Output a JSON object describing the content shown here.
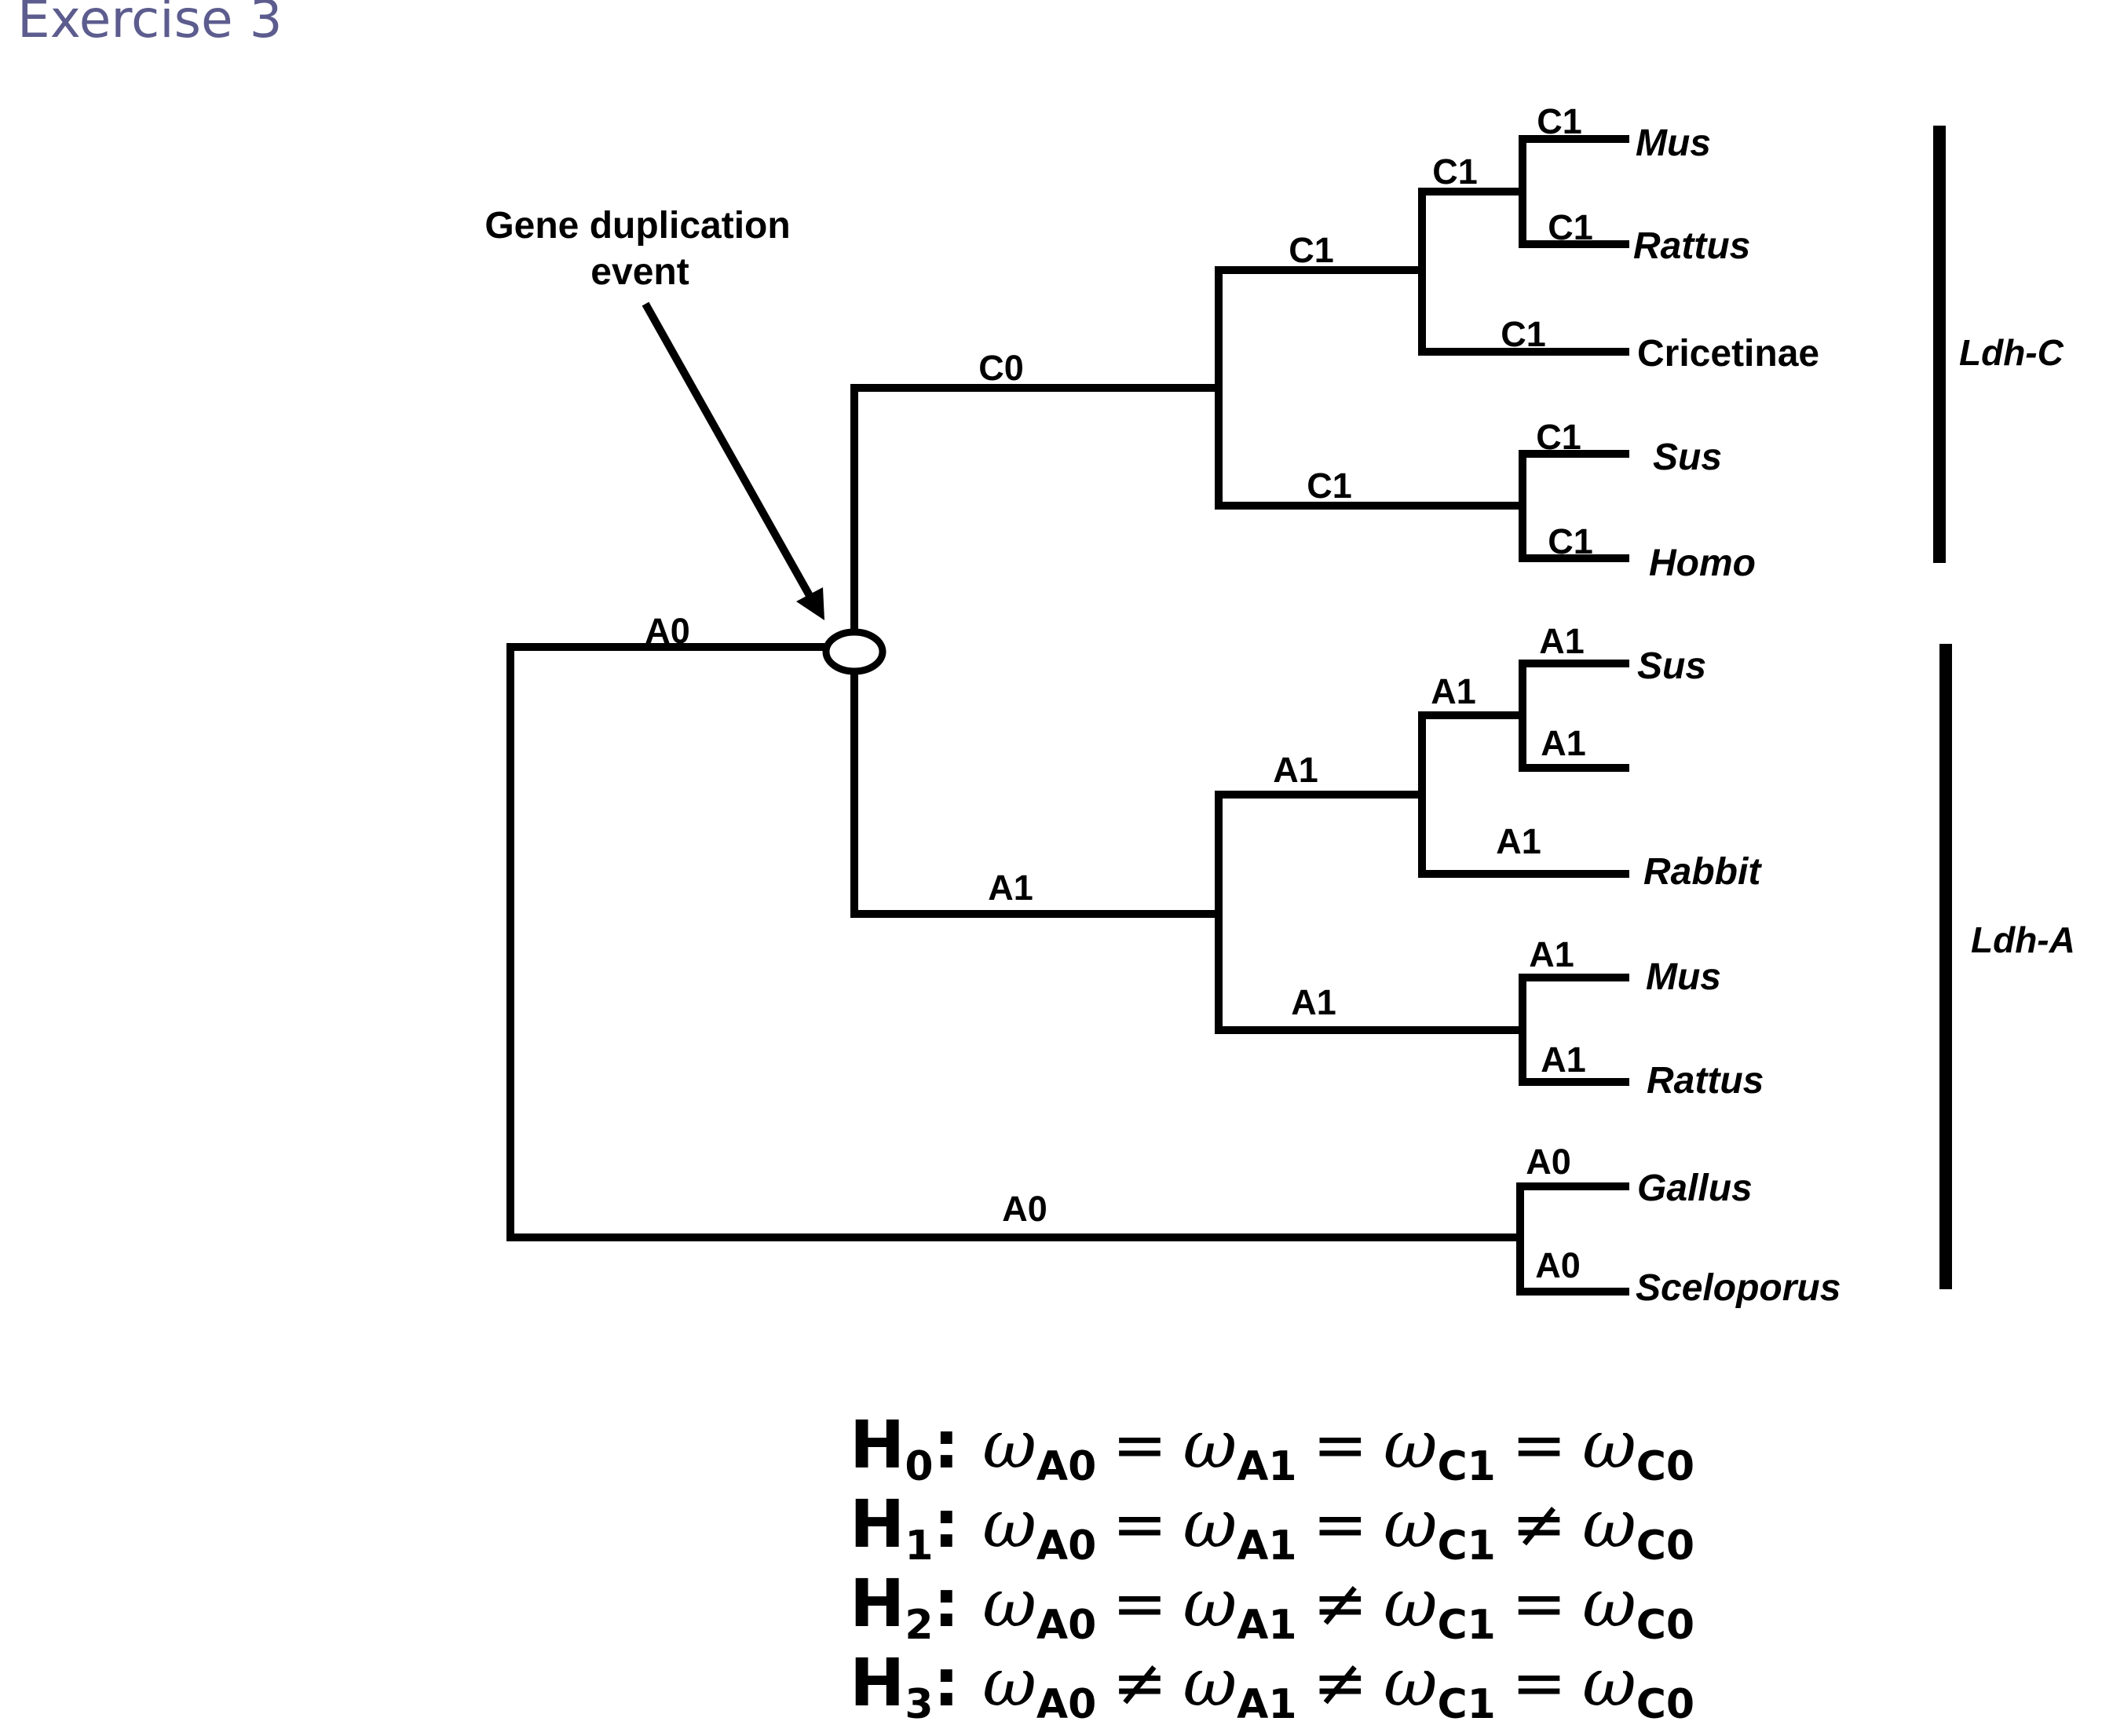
{
  "title": "Exercise 3",
  "annotation": {
    "line1": "Gene duplication",
    "line2": "event"
  },
  "groups": {
    "ldh_c": "Ldh-C",
    "ldh_a": "Ldh-A"
  },
  "taxa": {
    "c_mus": "Mus",
    "c_rattus": "Rattus",
    "c_cricetinae": "Cricetinae",
    "c_sus": "Sus",
    "c_homo": "Homo",
    "a_sus": "Sus",
    "a_rabbit": "Rabbit",
    "a_mus": "Mus",
    "a_rattus": "Rattus",
    "a_gallus": "Gallus",
    "a_sceloporus": "Sceloporus"
  },
  "branch_labels": {
    "root_upper": "A0",
    "root_lower": "A0",
    "c0": "C0",
    "c_clade": "C1",
    "c_murid": "C1",
    "c_mus": "C1",
    "c_rattus": "C1",
    "c_cricetinae": "C1",
    "c_sushomo": "C1",
    "c_sus": "C1",
    "c_homo": "C1",
    "a1": "A1",
    "a_clade": "A1",
    "a_pair": "A1",
    "a_sus": "A1",
    "a_unnamed": "A1",
    "a_rabbit": "A1",
    "a_murid": "A1",
    "a_mus": "A1",
    "a_rattus": "A1",
    "a_gallus": "A0",
    "a_sceloporus": "A0"
  },
  "hypotheses": [
    {
      "h": "H",
      "sub": "0",
      "terms": [
        "A0",
        "A1",
        "C1",
        "C0"
      ],
      "ops": [
        "=",
        "=",
        "="
      ]
    },
    {
      "h": "H",
      "sub": "1",
      "terms": [
        "A0",
        "A1",
        "C1",
        "C0"
      ],
      "ops": [
        "=",
        "=",
        "≠"
      ]
    },
    {
      "h": "H",
      "sub": "2",
      "terms": [
        "A0",
        "A1",
        "C1",
        "C0"
      ],
      "ops": [
        "=",
        "≠",
        "="
      ]
    },
    {
      "h": "H",
      "sub": "3",
      "terms": [
        "A0",
        "A1",
        "C1",
        "C0"
      ],
      "ops": [
        "≠",
        "≠",
        "="
      ]
    }
  ],
  "omega_symbol": "ω"
}
